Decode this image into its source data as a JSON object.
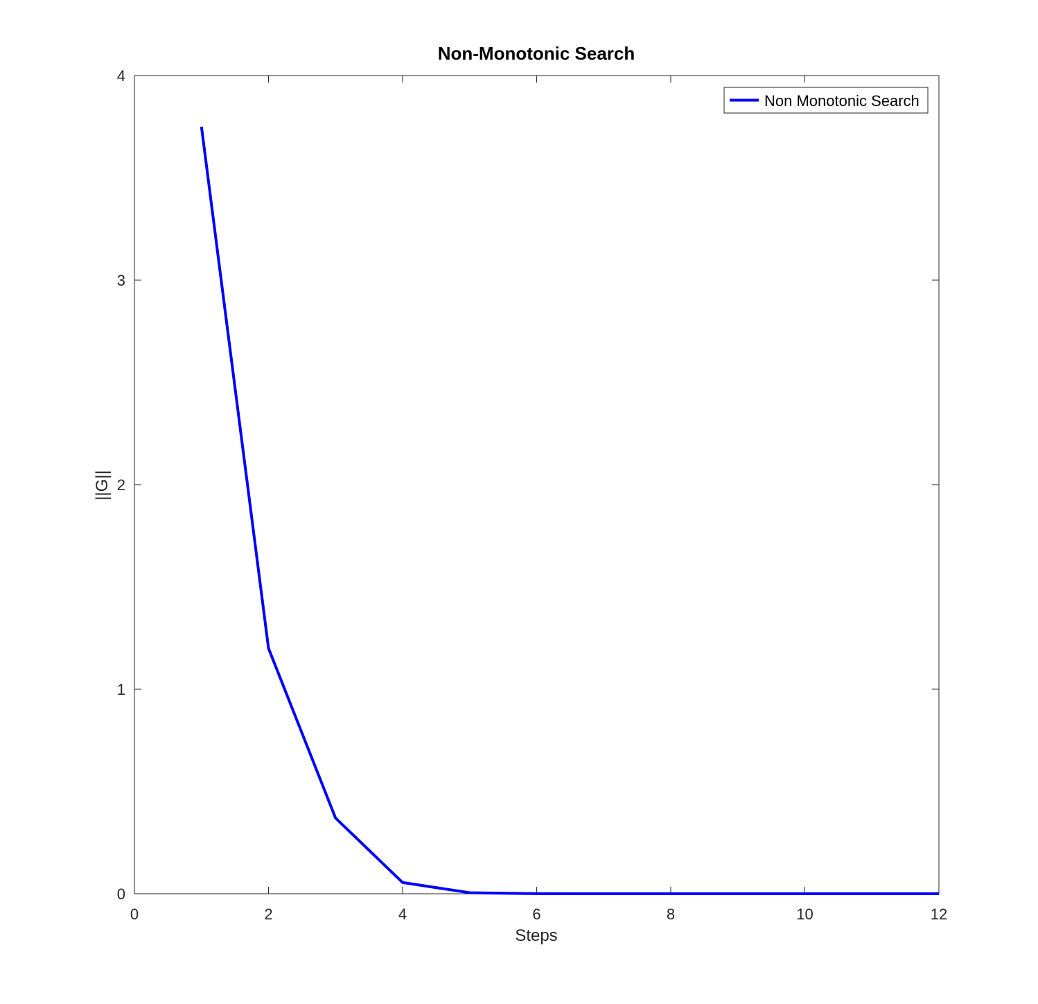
{
  "chart_data": {
    "type": "line",
    "title": "Non-Monotonic Search",
    "xlabel": "Steps",
    "ylabel": "||G||",
    "xlim": [
      0,
      12
    ],
    "ylim": [
      0,
      4
    ],
    "xticks": [
      0,
      2,
      4,
      6,
      8,
      10,
      12
    ],
    "yticks": [
      0,
      1,
      2,
      3,
      4
    ],
    "grid": false,
    "legend_position": "top-right",
    "series": [
      {
        "name": "Non Monotonic Search",
        "color": "#0000ff",
        "x": [
          1,
          2,
          3,
          4,
          5,
          6,
          7,
          8,
          9,
          10,
          11,
          12
        ],
        "y": [
          3.75,
          1.2,
          0.37,
          0.055,
          0.005,
          0.0005,
          0,
          0,
          0,
          0,
          0,
          0
        ]
      }
    ]
  }
}
